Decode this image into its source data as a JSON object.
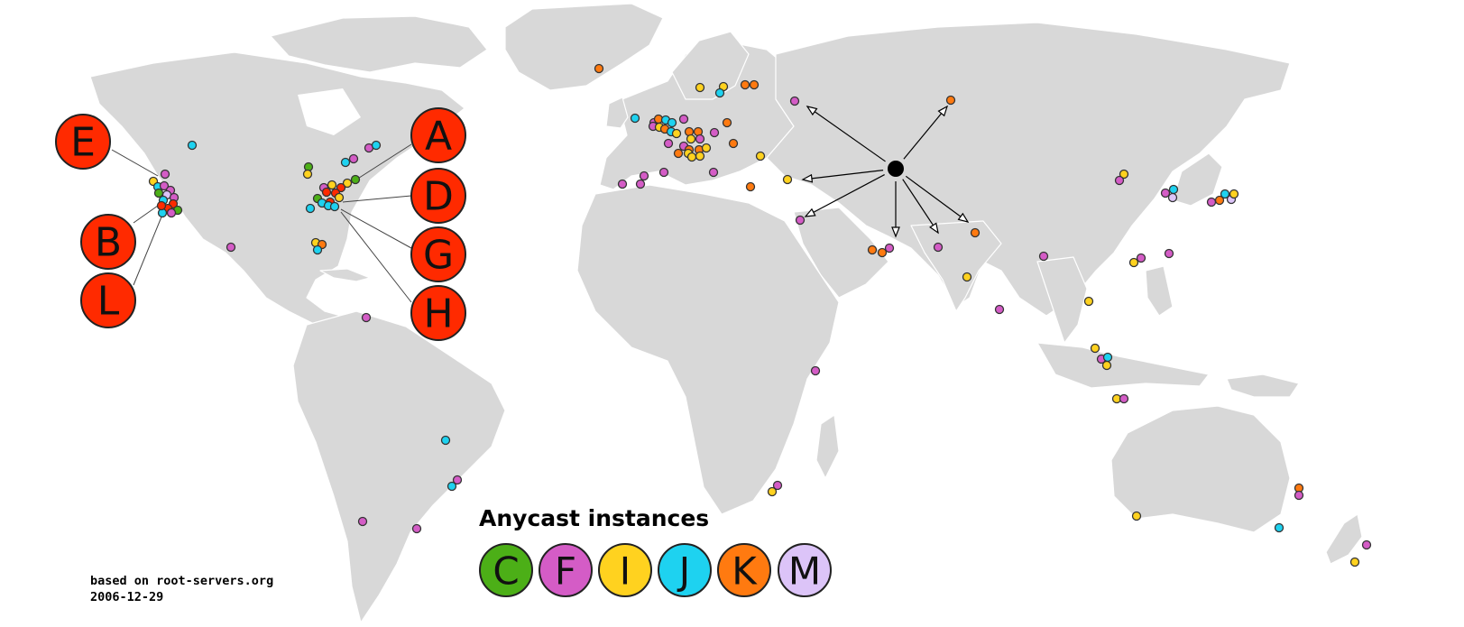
{
  "legend": {
    "title": "Anycast instances",
    "items": [
      {
        "letter": "C",
        "color": "#4caf17"
      },
      {
        "letter": "F",
        "color": "#d45cc6"
      },
      {
        "letter": "I",
        "color": "#ffd21f"
      },
      {
        "letter": "J",
        "color": "#1ed2f0"
      },
      {
        "letter": "K",
        "color": "#ff7a10"
      },
      {
        "letter": "M",
        "color": "#dcc4f8"
      }
    ]
  },
  "root_servers": {
    "color": "#ff2a00",
    "west_coast": [
      "E",
      "B",
      "L"
    ],
    "east_coast": [
      "A",
      "D",
      "G",
      "H"
    ]
  },
  "credit": {
    "line1": "based on root-servers.org",
    "line2": "2006-12-29"
  },
  "instance_colors": {
    "C": "#4caf17",
    "F": "#d45cc6",
    "I": "#ffd21f",
    "J": "#1ed2f0",
    "K": "#ff7a10",
    "M": "#dcc4f8",
    "R": "#ff2a00"
  }
}
